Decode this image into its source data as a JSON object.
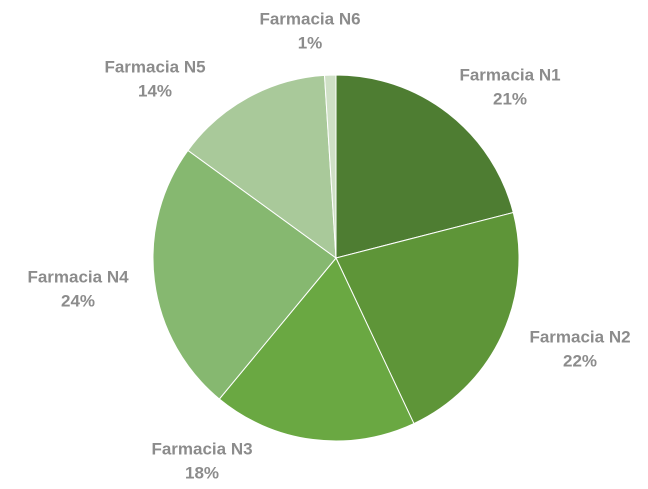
{
  "chart_data": {
    "type": "pie",
    "categories": [
      "Farmacia N1",
      "Farmacia N2",
      "Farmacia N3",
      "Farmacia N4",
      "Farmacia N5",
      "Farmacia N6"
    ],
    "values": [
      21,
      22,
      18,
      24,
      14,
      1
    ],
    "value_labels": [
      "21%",
      "22%",
      "18%",
      "24%",
      "14%",
      "1%"
    ],
    "colors": [
      "#4e7d32",
      "#5e9538",
      "#6aa842",
      "#86b870",
      "#a9c99a",
      "#cfe0c6"
    ]
  }
}
